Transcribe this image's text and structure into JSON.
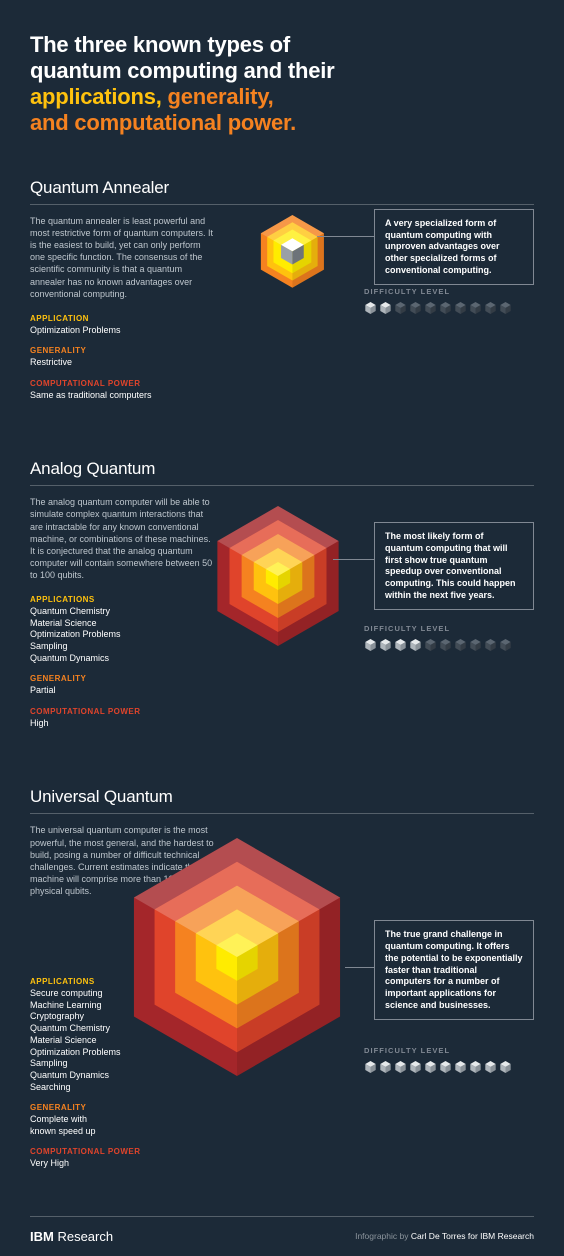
{
  "colors": {
    "bg": "#1c2a38",
    "rule": "#55606a",
    "muted": "#808893",
    "app": "#ffc20e",
    "gen": "#f58220",
    "pow": "#e0442b",
    "cubeLayers": [
      "#ffec00",
      "#ffc20e",
      "#f58220",
      "#e0442b",
      "#a4262a"
    ],
    "coreTop": "#ffffff",
    "coreLeft": "#9aa0a6",
    "coreRight": "#6d7379"
  },
  "headline": {
    "line1": "The three known types of",
    "line2": "quantum computing and their",
    "line3a": "applications,",
    "line3b": "generality,",
    "line4": "and computational power."
  },
  "difficultyLabel": "DIFFICULTY LEVEL",
  "sections": [
    {
      "title": "Quantum Annealer",
      "desc": "The quantum annealer is least powerful and most restrictive form of quantum computers. It is the easiest to build, yet can only perform one specific function. The consensus of the scientific community is that a quantum annealer has no known advantages over conventional computing.",
      "appLabel": "APPLICATION",
      "app": "Optimization Problems",
      "genLabel": "GENERALITY",
      "gen": "Restrictive",
      "powLabel": "COMPUTATIONAL POWER",
      "pow": "Same as traditional computers",
      "callout": "A very specialized form of quantum computing with unproven advantages over other specialized forms of conventional computing.",
      "cubeLayers": 3,
      "cubeScale": 0.52,
      "difficulty": 2,
      "calloutTop": -6,
      "calloutLineLeft": -58,
      "calloutLineWidth": 58,
      "calloutLineTop": 26,
      "diffTop": 72,
      "rcolH": 120,
      "cubeLeft": 18,
      "cubeTop": -6,
      "descMarginBottom": 14
    },
    {
      "title": "Analog Quantum",
      "desc": "The analog quantum computer will be able to simulate complex quantum interactions that are intractable for any known conventional machine, or combinations of these machines. It is conjectured that the analog quantum computer will contain somewhere between 50 to 100 qubits.",
      "appLabel": "APPLICATIONS",
      "app": "Quantum Chemistry\nMaterial Science\nOptimization Problems\nSampling\nQuantum Dynamics",
      "genLabel": "GENERALITY",
      "gen": "Partial",
      "powLabel": "COMPUTATIONAL POWER",
      "pow": "High",
      "callout": "The most likely form of quantum computing that will first show true quantum speedup over conventional computing. This could happen within the next five years.",
      "cubeLayers": 5,
      "cubeScale": 1.0,
      "difficulty": 4,
      "calloutTop": 26,
      "calloutLineLeft": -42,
      "calloutLineWidth": 42,
      "calloutLineTop": 36,
      "diffTop": 128,
      "rcolH": 230,
      "cubeLeft": -30,
      "cubeTop": 4,
      "descMarginBottom": 14
    },
    {
      "title": "Universal Quantum",
      "desc": "The universal quantum computer is the most powerful, the most general, and the hardest to build, posing a number of difficult technical challenges. Current estimates indicate that this machine will comprise more than 100,000 physical qubits.",
      "appLabel": "APPLICATIONS",
      "app": "Secure computing\nMachine Learning\nCryptography\nQuantum Chemistry\nMaterial Science\nOptimization Problems\nSampling\nQuantum Dynamics\nSearching",
      "genLabel": "GENERALITY",
      "gen": "Complete with\nknown speed up",
      "powLabel": "COMPUTATIONAL POWER",
      "pow": "Very High",
      "callout": "The true grand challenge in quantum computing. It offers the potential to be exponentially faster than traditional computers for a number of important applications for science and businesses.",
      "cubeLayers": 5,
      "cubeScale": 1.7,
      "difficulty": 10,
      "calloutTop": 96,
      "calloutLineLeft": -30,
      "calloutLineWidth": 30,
      "calloutLineTop": 46,
      "diffTop": 222,
      "rcolH": 340,
      "cubeLeft": -120,
      "cubeTop": 8,
      "descMarginBottom": 80
    }
  ],
  "footer": {
    "brandBold": "IBM",
    "brandRest": " Research",
    "creditPre": "Infographic by ",
    "creditBy": "Carl De Torres for IBM Research"
  }
}
